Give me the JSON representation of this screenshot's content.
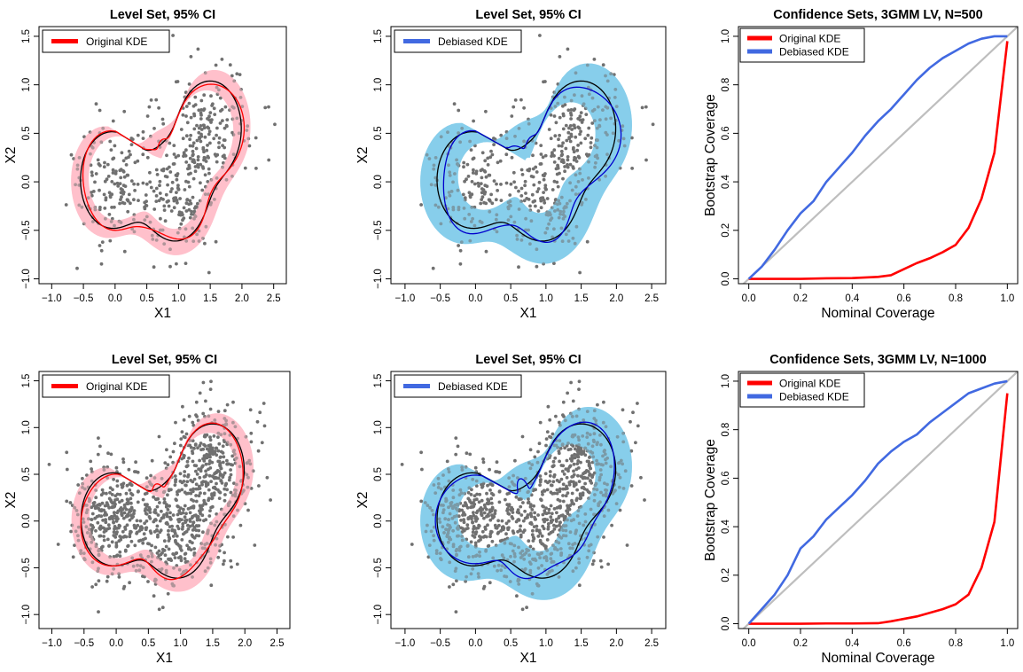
{
  "colors": {
    "original": "#ff0000",
    "original_band": "#ffc0cb",
    "debiased": "#4169e1",
    "debiased_band": "#87ceeb",
    "debiased_curve": "#0000cd",
    "truth": "#000000",
    "points": "#707070",
    "diagonal": "#bebebe"
  },
  "chart_data": [
    {
      "type": "scatter",
      "panel": "top-left",
      "title": "Level Set, 95% CI",
      "xlabel": "X1",
      "ylabel": "X2",
      "xlim": [
        -1.2,
        2.7
      ],
      "ylim": [
        -1.05,
        1.6
      ],
      "xticks": [
        "−1.0",
        "−0.5",
        "0.0",
        "0.5",
        "1.0",
        "1.5",
        "2.0",
        "2.5"
      ],
      "yticks": [
        "−1.0",
        "−0.5",
        "0.0",
        "0.5",
        "1.0",
        "1.5"
      ],
      "legend": {
        "position": "top-left",
        "entries": [
          "Original KDE"
        ]
      },
      "variant": "original",
      "n_points": 500,
      "seed": 11
    },
    {
      "type": "scatter",
      "panel": "top-middle",
      "title": "Level Set, 95% CI",
      "xlabel": "X1",
      "ylabel": "X2",
      "xlim": [
        -1.2,
        2.7
      ],
      "ylim": [
        -1.05,
        1.6
      ],
      "xticks": [
        "−1.0",
        "−0.5",
        "0.0",
        "0.5",
        "1.0",
        "1.5",
        "2.0",
        "2.5"
      ],
      "yticks": [
        "−1.0",
        "−0.5",
        "0.0",
        "0.5",
        "1.0",
        "1.5"
      ],
      "legend": {
        "position": "top-left",
        "entries": [
          "Debiased KDE"
        ]
      },
      "variant": "debiased",
      "n_points": 500,
      "seed": 11
    },
    {
      "type": "line",
      "panel": "top-right",
      "title": "Confidence Sets, 3GMM LV, N=500",
      "xlabel": "Nominal Coverage",
      "ylabel": "Bootstrap Coverage",
      "xlim": [
        -0.04,
        1.04
      ],
      "ylim": [
        -0.02,
        1.04
      ],
      "xticks": [
        "0.0",
        "0.2",
        "0.4",
        "0.6",
        "0.8",
        "1.0"
      ],
      "yticks": [
        "0.0",
        "0.2",
        "0.4",
        "0.6",
        "0.8",
        "1.0"
      ],
      "legend": {
        "position": "top-left"
      },
      "series": [
        {
          "name": "Original KDE",
          "x": [
            0,
            0.05,
            0.1,
            0.2,
            0.3,
            0.4,
            0.5,
            0.55,
            0.6,
            0.65,
            0.7,
            0.75,
            0.8,
            0.85,
            0.9,
            0.95,
            1.0
          ],
          "y": [
            0,
            0,
            0,
            0,
            0.002,
            0.003,
            0.008,
            0.015,
            0.04,
            0.065,
            0.085,
            0.11,
            0.14,
            0.21,
            0.33,
            0.52,
            0.98
          ]
        },
        {
          "name": "Debiased KDE",
          "x": [
            0,
            0.05,
            0.1,
            0.15,
            0.2,
            0.25,
            0.3,
            0.35,
            0.4,
            0.45,
            0.5,
            0.55,
            0.6,
            0.65,
            0.7,
            0.75,
            0.8,
            0.85,
            0.9,
            0.95,
            1.0
          ],
          "y": [
            0,
            0.05,
            0.12,
            0.2,
            0.27,
            0.32,
            0.4,
            0.46,
            0.52,
            0.59,
            0.65,
            0.7,
            0.76,
            0.82,
            0.87,
            0.91,
            0.94,
            0.97,
            0.99,
            1.0,
            1.0
          ]
        }
      ]
    },
    {
      "type": "scatter",
      "panel": "bottom-left",
      "title": "Level Set, 95% CI",
      "xlabel": "X1",
      "ylabel": "X2",
      "xlim": [
        -1.2,
        2.7
      ],
      "ylim": [
        -1.15,
        1.6
      ],
      "xticks": [
        "−1.0",
        "−0.5",
        "0.0",
        "0.5",
        "1.0",
        "1.5",
        "2.0",
        "2.5"
      ],
      "yticks": [
        "−1.0",
        "−0.5",
        "0.0",
        "0.5",
        "1.0",
        "1.5"
      ],
      "legend": {
        "position": "top-left",
        "entries": [
          "Original KDE"
        ]
      },
      "variant": "original",
      "n_points": 1000,
      "seed": 29
    },
    {
      "type": "scatter",
      "panel": "bottom-middle",
      "title": "Level Set, 95% CI",
      "xlabel": "X1",
      "ylabel": "X2",
      "xlim": [
        -1.2,
        2.7
      ],
      "ylim": [
        -1.15,
        1.6
      ],
      "xticks": [
        "−1.0",
        "−0.5",
        "0.0",
        "0.5",
        "1.0",
        "1.5",
        "2.0",
        "2.5"
      ],
      "yticks": [
        "−1.0",
        "−0.5",
        "0.0",
        "0.5",
        "1.0",
        "1.5"
      ],
      "legend": {
        "position": "top-left",
        "entries": [
          "Debiased KDE"
        ]
      },
      "variant": "debiased",
      "n_points": 1000,
      "seed": 29
    },
    {
      "type": "line",
      "panel": "bottom-right",
      "title": "Confidence Sets, 3GMM LV, N=1000",
      "xlabel": "Nominal Coverage",
      "ylabel": "Bootstrap Coverage",
      "xlim": [
        -0.04,
        1.04
      ],
      "ylim": [
        -0.02,
        1.04
      ],
      "xticks": [
        "0.0",
        "0.2",
        "0.4",
        "0.6",
        "0.8",
        "1.0"
      ],
      "yticks": [
        "0.0",
        "0.2",
        "0.4",
        "0.6",
        "0.8",
        "1.0"
      ],
      "legend": {
        "position": "top-left"
      },
      "series": [
        {
          "name": "Original KDE",
          "x": [
            0,
            0.05,
            0.1,
            0.2,
            0.3,
            0.4,
            0.5,
            0.55,
            0.6,
            0.65,
            0.7,
            0.75,
            0.8,
            0.85,
            0.9,
            0.95,
            1.0
          ],
          "y": [
            0,
            0,
            0,
            0,
            0.001,
            0.001,
            0.002,
            0.01,
            0.02,
            0.03,
            0.045,
            0.06,
            0.08,
            0.12,
            0.23,
            0.42,
            0.95
          ]
        },
        {
          "name": "Debiased KDE",
          "x": [
            0,
            0.05,
            0.1,
            0.15,
            0.2,
            0.25,
            0.3,
            0.35,
            0.4,
            0.45,
            0.5,
            0.55,
            0.6,
            0.65,
            0.7,
            0.75,
            0.8,
            0.85,
            0.9,
            0.95,
            1.0
          ],
          "y": [
            0,
            0.06,
            0.12,
            0.2,
            0.31,
            0.36,
            0.43,
            0.48,
            0.53,
            0.59,
            0.66,
            0.71,
            0.75,
            0.78,
            0.83,
            0.87,
            0.91,
            0.95,
            0.97,
            0.99,
            1.0
          ]
        }
      ]
    }
  ]
}
